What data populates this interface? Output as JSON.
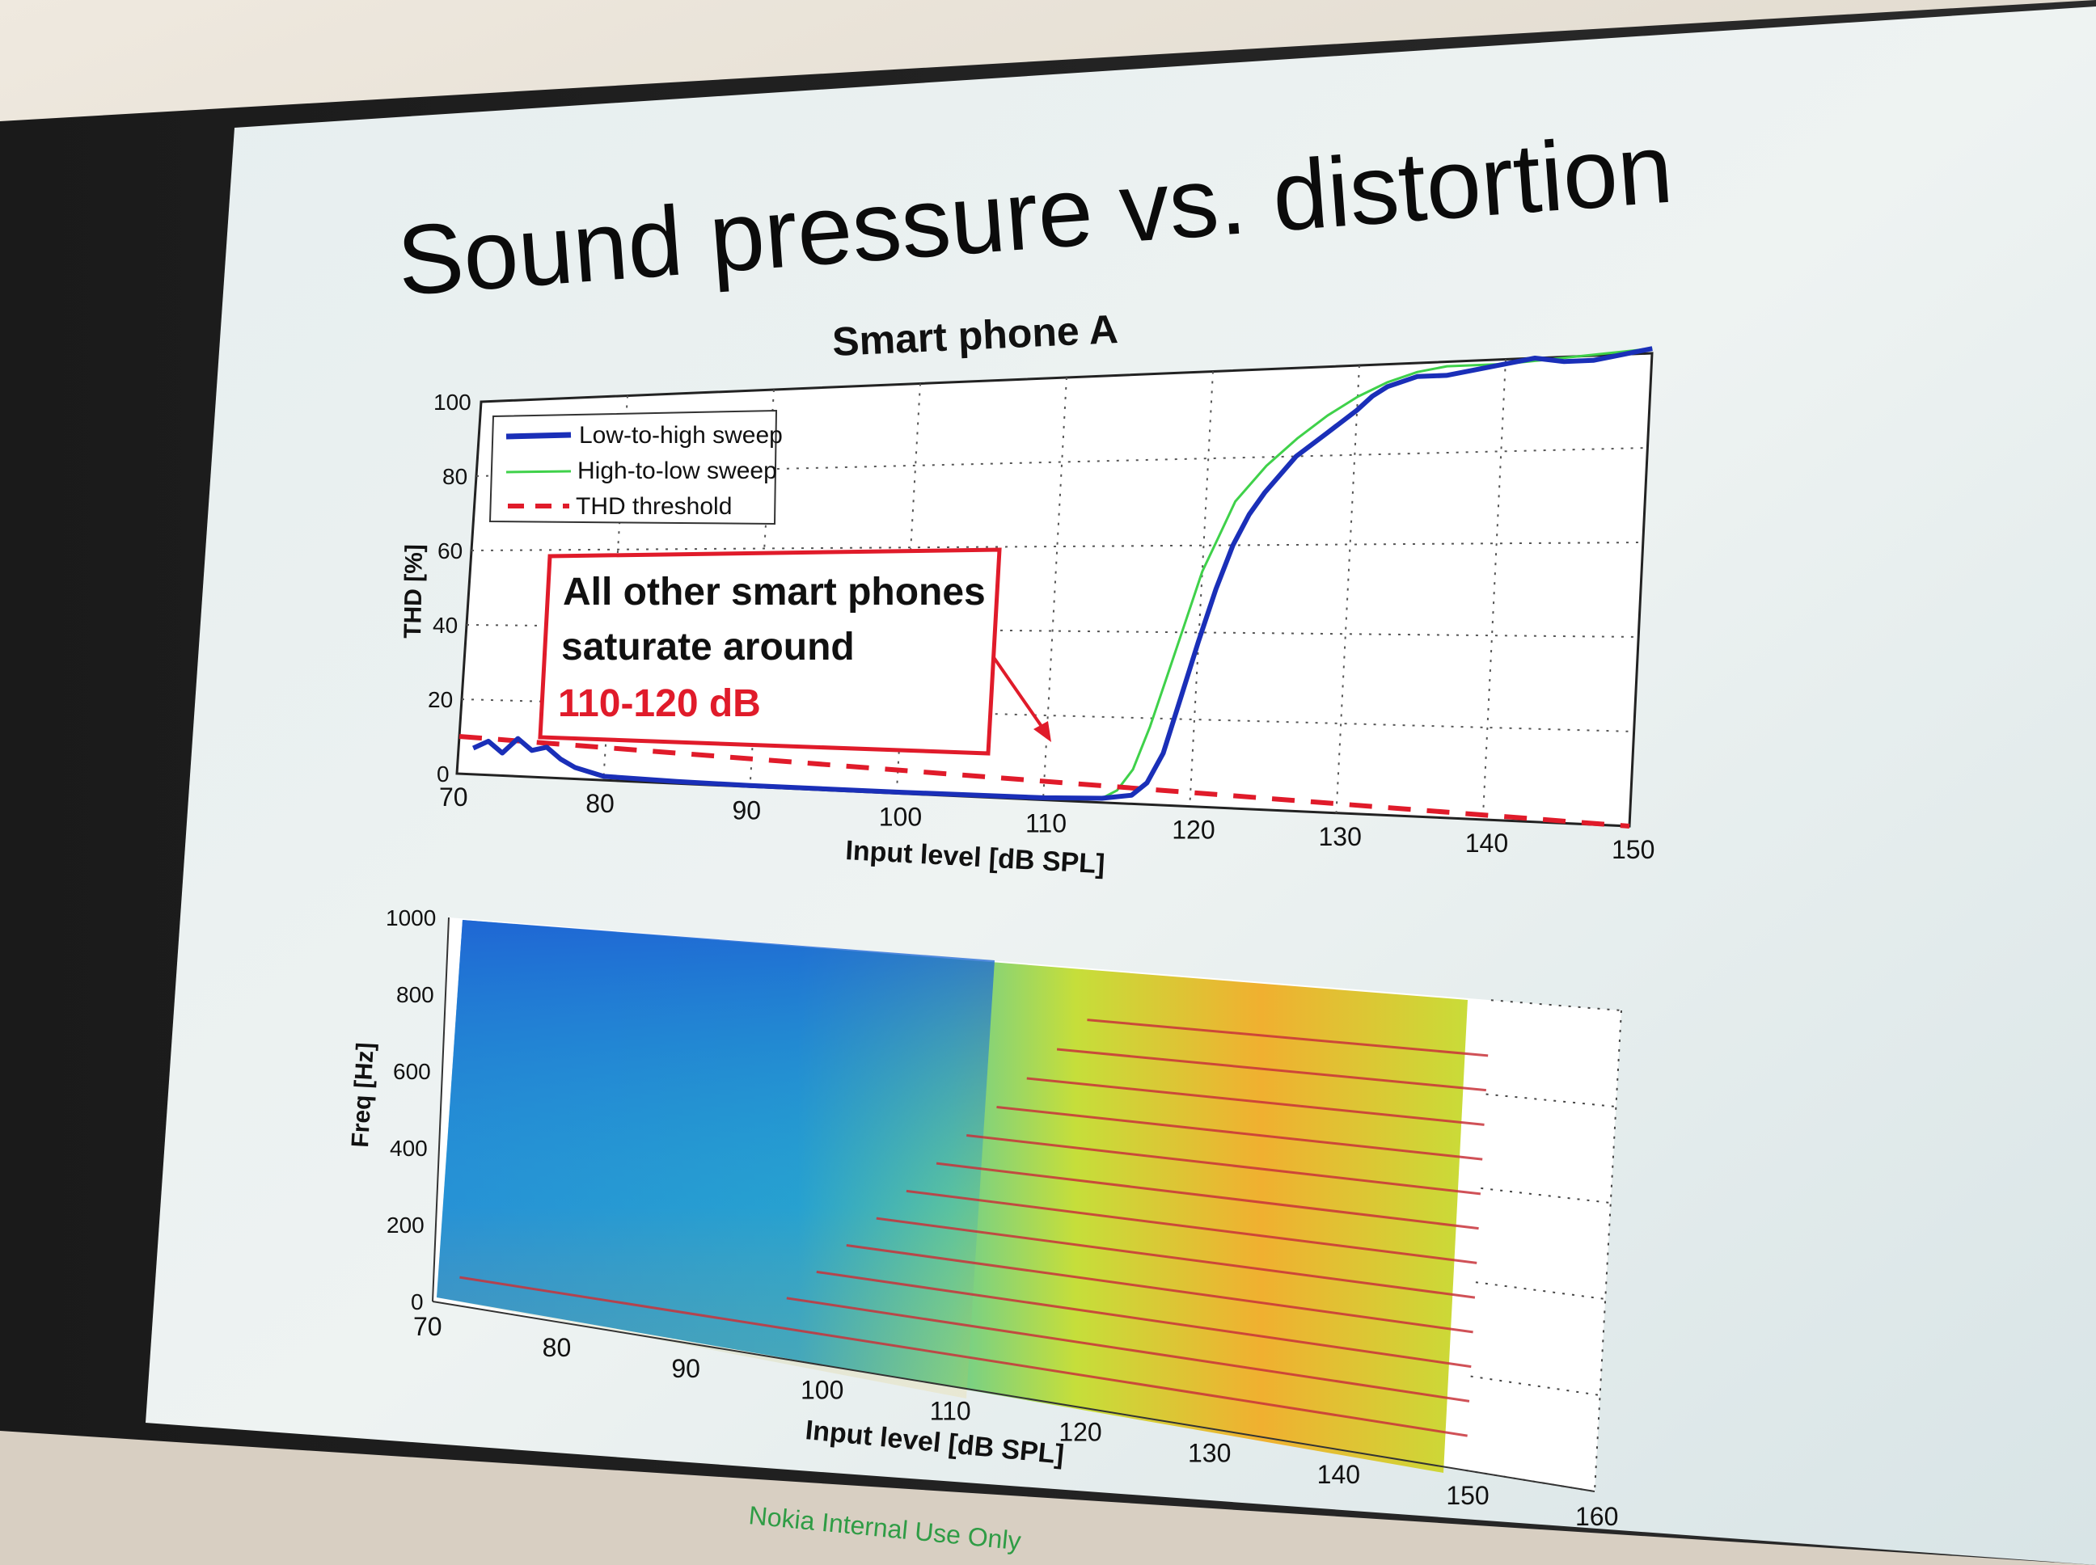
{
  "slide": {
    "title": "Sound pressure vs. distortion",
    "footer": "Nokia Internal Use Only"
  },
  "colors": {
    "low_to_high": "#1a2fb8",
    "high_to_low": "#3fd14a",
    "threshold": "#e01b2a",
    "callout_border": "#e01b2a",
    "callout_highlight": "#e01b2a"
  },
  "callout": {
    "line1": "All other smart phones",
    "line2": "saturate around",
    "line3": "110-120 dB"
  },
  "chart_data": [
    {
      "type": "line",
      "title": "Smart phone A",
      "xlabel": "Input level [dB SPL]",
      "ylabel": "THD [%]",
      "xlim": [
        70,
        150
      ],
      "ylim": [
        0,
        100
      ],
      "xticks": [
        "70",
        "80",
        "90",
        "100",
        "110",
        "120",
        "130",
        "140",
        "150"
      ],
      "yticks": [
        "0",
        "20",
        "40",
        "60",
        "80",
        "100"
      ],
      "grid": true,
      "legend_position": "top-left",
      "series": [
        {
          "name": "Low-to-high sweep",
          "style": "solid-thick",
          "x": [
            71,
            72,
            73,
            74,
            75,
            76,
            77,
            78,
            79,
            80,
            85,
            90,
            100,
            110,
            114,
            116,
            117,
            118,
            119,
            120,
            121,
            122,
            123,
            124,
            126,
            128,
            130,
            131,
            132,
            134,
            136,
            138,
            140,
            142,
            144,
            146,
            148,
            150
          ],
          "y": [
            7,
            9,
            6,
            10,
            7,
            8,
            5,
            3,
            2,
            1,
            0.5,
            0.3,
            0.3,
            0.5,
            1,
            2,
            5,
            12,
            25,
            38,
            50,
            60,
            67,
            72,
            80,
            85,
            90,
            93,
            95,
            97,
            97,
            98,
            99,
            100,
            99,
            99,
            100,
            101
          ]
        },
        {
          "name": "High-to-low sweep",
          "style": "solid-thin",
          "x": [
            114,
            115,
            116,
            117,
            118,
            119,
            120,
            121,
            122,
            124,
            126,
            128,
            130,
            132,
            134,
            136,
            140,
            145,
            150
          ],
          "y": [
            1,
            3,
            8,
            18,
            30,
            42,
            54,
            62,
            70,
            78,
            84,
            89,
            93,
            96,
            98,
            99,
            99,
            100,
            101
          ]
        },
        {
          "name": "THD threshold",
          "style": "dashed",
          "x": [
            70,
            150
          ],
          "y": [
            10,
            0
          ]
        }
      ]
    },
    {
      "type": "heatmap",
      "xlabel": "Input level [dB SPL]",
      "ylabel": "Freq [Hz]",
      "xlim": [
        70,
        160
      ],
      "ylim": [
        0,
        1000
      ],
      "xticks": [
        "70",
        "80",
        "90",
        "100",
        "110",
        "120",
        "130",
        "140",
        "150",
        "160"
      ],
      "yticks": [
        "0",
        "200",
        "400",
        "600",
        "800",
        "1000"
      ],
      "data_end_x": 150,
      "harmonic_lines": 12
    }
  ]
}
